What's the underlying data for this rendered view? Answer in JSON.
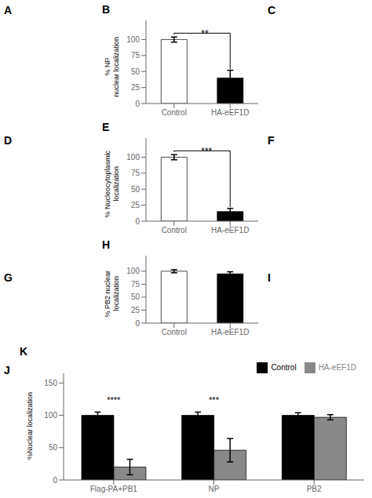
{
  "annotations": [
    "A",
    "D",
    "G",
    "J",
    "C",
    "F",
    "I"
  ],
  "chart_data": [
    {
      "type": "bar",
      "title": "B",
      "ylabel": "% NP\nnuclear localization",
      "categories": [
        "Control",
        "HA-eEF1D"
      ],
      "values": [
        100,
        40
      ],
      "error_bars": [
        4,
        12
      ],
      "colors": [
        "white",
        "black"
      ],
      "annotations": [
        {
          "text": "**"
        }
      ],
      "ylim": [
        0,
        130
      ],
      "yticks": [
        0,
        25,
        50,
        75,
        100
      ],
      "grid": false
    },
    {
      "type": "bar",
      "title": "E",
      "ylabel": "% Nucleocytoplasmic\nlocalization",
      "categories": [
        "Control",
        "HA-eEF1D"
      ],
      "values": [
        100,
        15
      ],
      "error_bars": [
        4,
        5
      ],
      "colors": [
        "white",
        "black"
      ],
      "annotations": [
        {
          "text": "***"
        }
      ],
      "ylim": [
        0,
        130
      ],
      "yticks": [
        0,
        25,
        50,
        75,
        100
      ],
      "grid": false
    },
    {
      "type": "bar",
      "title": "H",
      "ylabel": "% PB2 nuclear\nlocalization",
      "categories": [
        "Control",
        "HA-eEF1D"
      ],
      "values": [
        100,
        95
      ],
      "error_bars": [
        3,
        4
      ],
      "colors": [
        "white",
        "black"
      ],
      "ylim": [
        0,
        130
      ],
      "yticks": [
        0,
        25,
        50,
        75,
        100
      ],
      "grid": false
    },
    {
      "type": "bar",
      "title": "K",
      "ylabel": "%Nuclear localization",
      "categories": [
        "Flag-PA+PB1",
        "NP",
        "PB2"
      ],
      "series": [
        {
          "name": "Control",
          "color": "black",
          "values": [
            100,
            100,
            100
          ],
          "error_bars": [
            5,
            5,
            4
          ]
        },
        {
          "name": "HA-eEF1D",
          "color": "#888888",
          "values": [
            20,
            46,
            97
          ],
          "error_bars": [
            12,
            18,
            4
          ]
        }
      ],
      "annotations": [
        {
          "category": "Flag-PA+PB1",
          "text": "****"
        },
        {
          "category": "NP",
          "text": "***"
        }
      ],
      "ylim": [
        0,
        165
      ],
      "yticks": [
        0,
        50,
        100,
        150
      ],
      "legend": "upper right",
      "grid": false
    }
  ]
}
